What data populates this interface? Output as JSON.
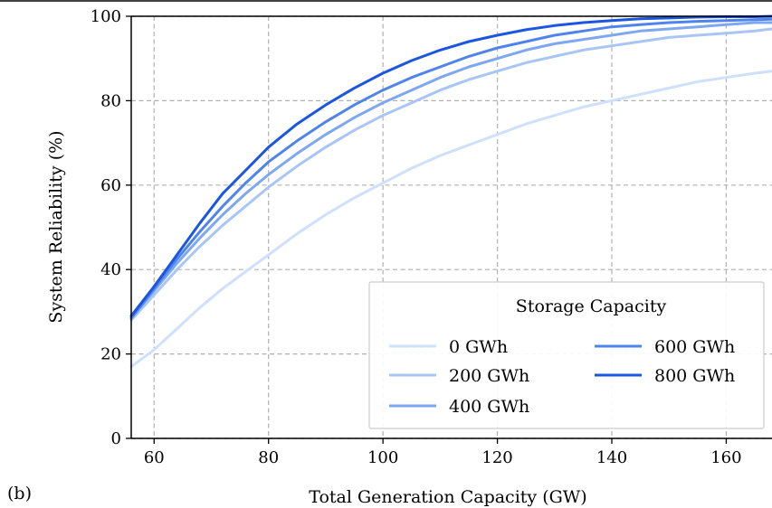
{
  "panel_label": "(b)",
  "chart_data": {
    "type": "line",
    "title": "",
    "xlabel": "Total Generation Capacity (GW)",
    "ylabel": "System Reliability (%)",
    "xlim": [
      56,
      168
    ],
    "ylim": [
      0,
      100
    ],
    "xticks": [
      60,
      80,
      100,
      120,
      140,
      160
    ],
    "yticks": [
      0,
      20,
      40,
      60,
      80,
      100
    ],
    "grid": true,
    "legend": {
      "title": "Storage Capacity",
      "position": "lower-right",
      "columns": 2
    },
    "x": [
      56,
      60,
      64,
      68,
      72,
      76,
      80,
      85,
      90,
      95,
      100,
      105,
      110,
      115,
      120,
      125,
      130,
      135,
      140,
      145,
      150,
      155,
      160,
      165,
      168
    ],
    "series": [
      {
        "name": "0 GWh",
        "color": "#cfe0fb",
        "values": [
          17.0,
          21.0,
          26.0,
          31.0,
          35.5,
          39.5,
          43.5,
          48.5,
          53.0,
          57.0,
          60.5,
          64.0,
          67.0,
          69.5,
          72.0,
          74.5,
          76.5,
          78.5,
          80.0,
          81.5,
          83.0,
          84.5,
          85.5,
          86.5,
          87.0
        ]
      },
      {
        "name": "200 GWh",
        "color": "#a9c5f6",
        "values": [
          28.0,
          34.0,
          40.0,
          45.5,
          50.5,
          55.0,
          59.5,
          64.5,
          69.0,
          73.0,
          76.5,
          79.5,
          82.5,
          85.0,
          87.0,
          89.0,
          90.5,
          92.0,
          93.0,
          94.0,
          95.0,
          95.5,
          96.0,
          96.5,
          97.0
        ]
      },
      {
        "name": "400 GWh",
        "color": "#7ea7f1",
        "values": [
          28.5,
          35.0,
          41.5,
          47.5,
          53.0,
          58.0,
          62.5,
          67.5,
          72.0,
          76.0,
          79.5,
          82.5,
          85.5,
          88.0,
          90.0,
          92.0,
          93.5,
          94.5,
          95.5,
          96.5,
          97.0,
          97.5,
          98.0,
          98.5,
          98.5
        ]
      },
      {
        "name": "600 GWh",
        "color": "#4f84ec",
        "values": [
          28.5,
          35.5,
          42.5,
          49.0,
          55.0,
          60.5,
          65.5,
          70.5,
          75.0,
          79.0,
          82.5,
          85.5,
          88.0,
          90.5,
          92.5,
          94.0,
          95.5,
          96.5,
          97.5,
          98.0,
          98.5,
          98.8,
          99.0,
          99.2,
          99.3
        ]
      },
      {
        "name": "800 GWh",
        "color": "#1a56e0",
        "values": [
          29.0,
          36.0,
          43.5,
          51.0,
          58.0,
          63.5,
          69.0,
          74.5,
          79.0,
          83.0,
          86.5,
          89.5,
          92.0,
          94.0,
          95.5,
          96.8,
          97.8,
          98.5,
          99.0,
          99.4,
          99.6,
          99.8,
          99.9,
          99.9,
          100.0
        ]
      }
    ]
  }
}
